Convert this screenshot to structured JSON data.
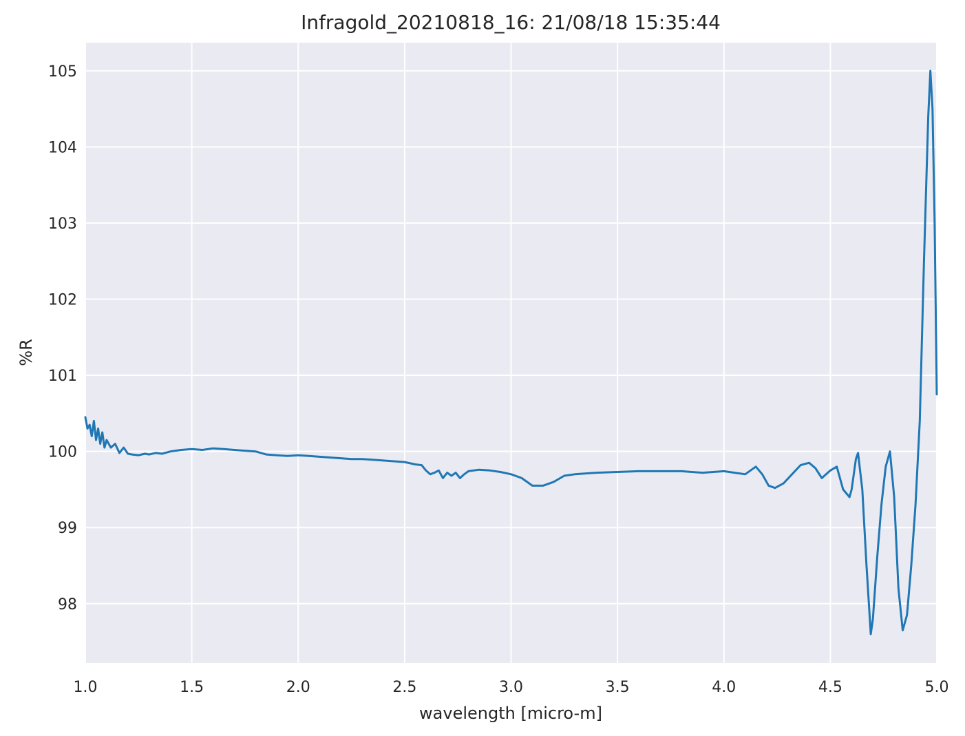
{
  "chart_data": {
    "type": "line",
    "title": "Infragold_20210818_16:  21/08/18 15:35:44",
    "xlabel": "wavelength [micro-m]",
    "ylabel": "%R",
    "xlim": [
      1.0,
      5.0
    ],
    "ylim": [
      97.22,
      105.37
    ],
    "xticks": [
      "1.0",
      "1.5",
      "2.0",
      "2.5",
      "3.0",
      "3.5",
      "4.0",
      "4.5",
      "5.0"
    ],
    "yticks": [
      "98",
      "99",
      "100",
      "101",
      "102",
      "103",
      "104",
      "105"
    ],
    "grid": true,
    "legend": "none",
    "colors": {
      "background": "#eaeaf2",
      "grid": "#ffffff",
      "series": "#1f77b4",
      "text": "#262626"
    },
    "series": [
      {
        "x": [
          1.0,
          1.01,
          1.02,
          1.03,
          1.04,
          1.05,
          1.06,
          1.07,
          1.08,
          1.09,
          1.1,
          1.12,
          1.14,
          1.16,
          1.18,
          1.2,
          1.22,
          1.25,
          1.28,
          1.3,
          1.33,
          1.36,
          1.4,
          1.45,
          1.5,
          1.55,
          1.6,
          1.65,
          1.7,
          1.75,
          1.8,
          1.85,
          1.9,
          1.95,
          2.0,
          2.05,
          2.1,
          2.15,
          2.2,
          2.25,
          2.3,
          2.35,
          2.4,
          2.45,
          2.5,
          2.55,
          2.58,
          2.6,
          2.62,
          2.64,
          2.66,
          2.68,
          2.7,
          2.72,
          2.74,
          2.76,
          2.78,
          2.8,
          2.85,
          2.9,
          2.95,
          3.0,
          3.05,
          3.1,
          3.15,
          3.2,
          3.25,
          3.3,
          3.4,
          3.5,
          3.6,
          3.7,
          3.8,
          3.9,
          4.0,
          4.05,
          4.1,
          4.15,
          4.18,
          4.21,
          4.24,
          4.28,
          4.32,
          4.36,
          4.4,
          4.43,
          4.46,
          4.5,
          4.53,
          4.56,
          4.59,
          4.6,
          4.62,
          4.63,
          4.65,
          4.67,
          4.69,
          4.7,
          4.72,
          4.74,
          4.76,
          4.78,
          4.8,
          4.82,
          4.84,
          4.86,
          4.88,
          4.9,
          4.92,
          4.94,
          4.96,
          4.97,
          4.98,
          4.99,
          5.0
        ],
        "y": [
          100.45,
          100.3,
          100.35,
          100.2,
          100.4,
          100.15,
          100.3,
          100.1,
          100.25,
          100.05,
          100.15,
          100.05,
          100.1,
          99.98,
          100.05,
          99.97,
          99.96,
          99.95,
          99.97,
          99.96,
          99.98,
          99.97,
          100.0,
          100.02,
          100.03,
          100.02,
          100.04,
          100.03,
          100.02,
          100.01,
          100.0,
          99.96,
          99.95,
          99.94,
          99.95,
          99.94,
          99.93,
          99.92,
          99.91,
          99.9,
          99.9,
          99.89,
          99.88,
          99.87,
          99.86,
          99.83,
          99.82,
          99.75,
          99.7,
          99.72,
          99.75,
          99.65,
          99.72,
          99.68,
          99.72,
          99.65,
          99.7,
          99.74,
          99.76,
          99.75,
          99.73,
          99.7,
          99.65,
          99.55,
          99.55,
          99.6,
          99.68,
          99.7,
          99.72,
          99.73,
          99.74,
          99.74,
          99.74,
          99.72,
          99.74,
          99.72,
          99.7,
          99.8,
          99.7,
          99.55,
          99.52,
          99.58,
          99.7,
          99.82,
          99.85,
          99.78,
          99.65,
          99.75,
          99.8,
          99.5,
          99.4,
          99.5,
          99.9,
          99.98,
          99.5,
          98.5,
          97.6,
          97.8,
          98.6,
          99.3,
          99.8,
          100.0,
          99.4,
          98.2,
          97.65,
          97.85,
          98.5,
          99.3,
          100.4,
          102.5,
          104.4,
          105.0,
          104.5,
          103.0,
          100.75
        ]
      }
    ]
  }
}
